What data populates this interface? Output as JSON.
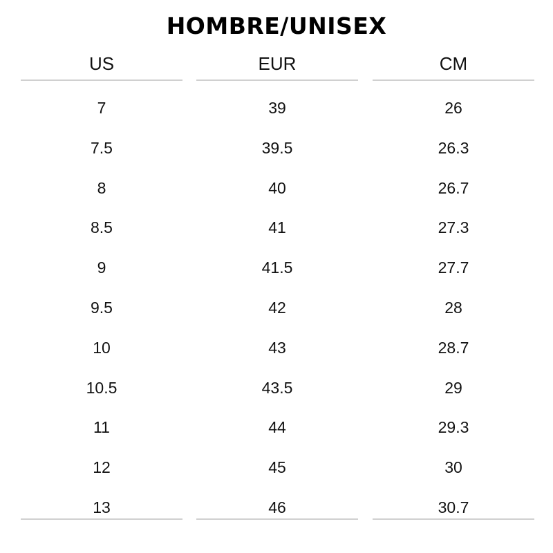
{
  "title": "HOMBRE/UNISEX",
  "table": {
    "columns": [
      "US",
      "EUR",
      "CM"
    ],
    "rows": [
      [
        "7",
        "39",
        "26"
      ],
      [
        "7.5",
        "39.5",
        "26.3"
      ],
      [
        "8",
        "40",
        "26.7"
      ],
      [
        "8.5",
        "41",
        "27.3"
      ],
      [
        "9",
        "41.5",
        "27.7"
      ],
      [
        "9.5",
        "42",
        "28"
      ],
      [
        "10",
        "43",
        "28.7"
      ],
      [
        "10.5",
        "43.5",
        "29"
      ],
      [
        "11",
        "44",
        "29.3"
      ],
      [
        "12",
        "45",
        "30"
      ],
      [
        "13",
        "46",
        "30.7"
      ]
    ]
  }
}
